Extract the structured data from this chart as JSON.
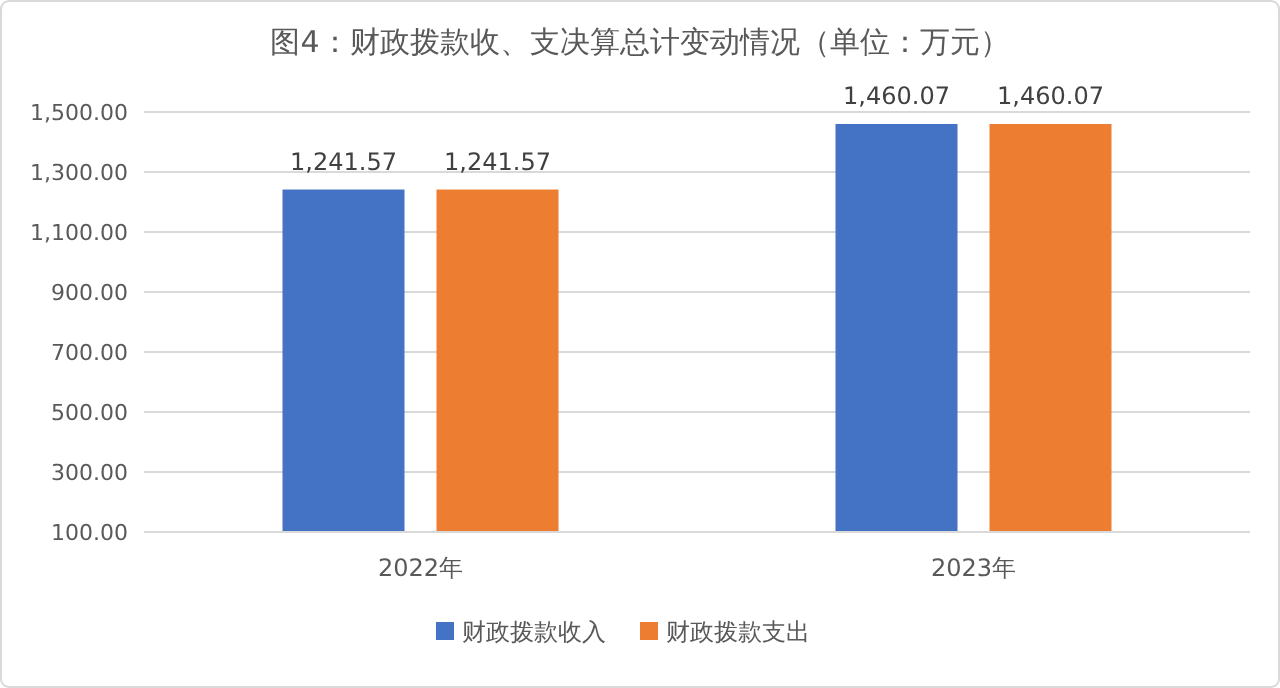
{
  "chart_data": {
    "type": "bar",
    "title": "图4：财政拨款收、支决算总计变动情况（单位：万元）",
    "categories": [
      "2022年",
      "2023年"
    ],
    "series": [
      {
        "name": "财政拨款收入",
        "color": "#4472c4",
        "values": [
          1241.57,
          1460.07
        ],
        "value_labels": [
          "1,241.57",
          "1,460.07"
        ]
      },
      {
        "name": "财政拨款支出",
        "color": "#ed7d31",
        "values": [
          1241.57,
          1460.07
        ],
        "value_labels": [
          "1,241.57",
          "1,460.07"
        ]
      }
    ],
    "ylim": [
      100,
      1500
    ],
    "yticks": [
      {
        "value": 100,
        "label": "100.00"
      },
      {
        "value": 300,
        "label": "300.00"
      },
      {
        "value": 500,
        "label": "500.00"
      },
      {
        "value": 700,
        "label": "700.00"
      },
      {
        "value": 900,
        "label": "900.00"
      },
      {
        "value": 1100,
        "label": "1,100.00"
      },
      {
        "value": 1300,
        "label": "1,300.00"
      },
      {
        "value": 1500,
        "label": "1,500.00"
      }
    ],
    "grid": "y",
    "legend": "bottom"
  }
}
